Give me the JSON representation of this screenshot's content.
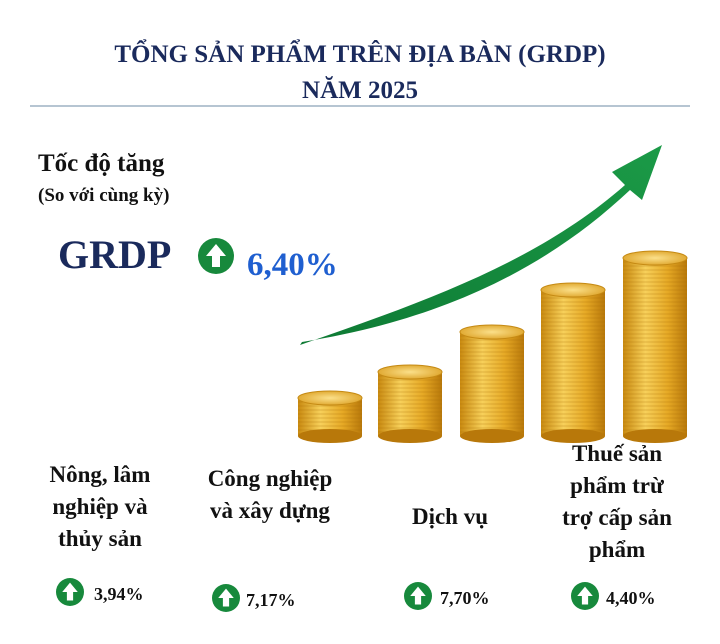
{
  "header": {
    "title_lines": [
      "TỔNG SẢN PHẨM TRÊN ĐỊA BÀN (GRDP)",
      "NĂM 2025"
    ]
  },
  "growth": {
    "label": "Tốc độ tăng",
    "sublabel": "(So với cùng kỳ)",
    "name": "GRDP",
    "value": "6,40%"
  },
  "sectors": [
    {
      "label_lines": [
        "Nông, lâm",
        "nghiệp và",
        "thủy sản"
      ],
      "value": "3,94%"
    },
    {
      "label_lines": [
        "Công nghiệp",
        "và xây dựng"
      ],
      "value": "7,17%"
    },
    {
      "label_lines": [
        "Dịch vụ"
      ],
      "value": "7,70%"
    },
    {
      "label_lines": [
        "Thuế sản",
        "phẩm trừ",
        "trợ cấp sản",
        "phẩm"
      ],
      "value": "4,40%"
    }
  ]
}
